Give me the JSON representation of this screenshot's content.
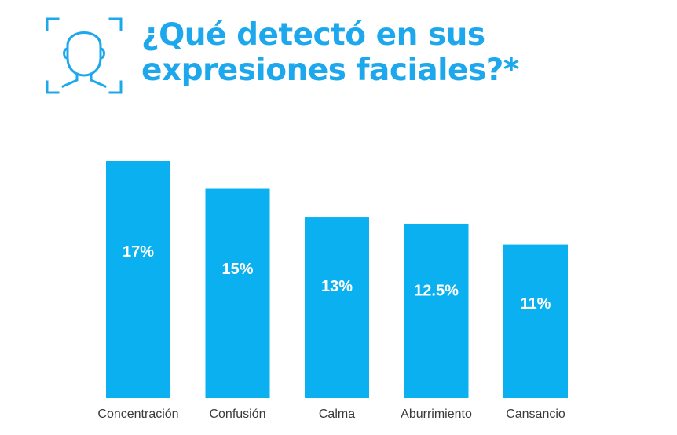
{
  "header": {
    "title_line1": "¿Qué detectó en sus",
    "title_line2": "expresiones faciales?*",
    "icon": "face-scan-icon"
  },
  "colors": {
    "accent": "#1da8ee",
    "bar": "#0ab0f0",
    "bar_label": "#ffffff",
    "category_label": "#3a3a3a"
  },
  "chart_data": {
    "type": "bar",
    "title": "¿Qué detectó en sus expresiones faciales?*",
    "categories": [
      "Concentración",
      "Confusión",
      "Calma",
      "Aburrimiento",
      "Cansancio"
    ],
    "values": [
      17,
      15,
      13,
      12.5,
      11
    ],
    "value_labels": [
      "17%",
      "15%",
      "13%",
      "12.5%",
      "11%"
    ],
    "unit": "%",
    "xlabel": "",
    "ylabel": "",
    "ylim": [
      0,
      17
    ],
    "grid": false,
    "legend": "none"
  }
}
